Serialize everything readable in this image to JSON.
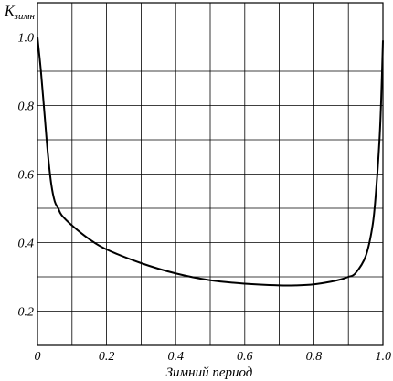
{
  "chart_data": {
    "type": "line",
    "ylabel_main": "K",
    "ylabel_sub": "зимн",
    "xlabel": "Зимний период",
    "xlim": [
      0,
      1.0
    ],
    "ylim": [
      0.1,
      1.1
    ],
    "grid": true,
    "x_ticks": [
      0,
      0.2,
      0.4,
      0.6,
      0.8,
      1.0
    ],
    "x_tick_labels": [
      "0",
      "0.2",
      "0.4",
      "0.6",
      "0.8",
      "1.0"
    ],
    "y_ticks": [
      0.2,
      0.4,
      0.6,
      0.8,
      1.0
    ],
    "y_tick_labels": [
      "0.2",
      "0.4",
      "0.6",
      "0.8",
      "1.0"
    ],
    "x_gridlines": [
      0.1,
      0.2,
      0.3,
      0.4,
      0.5,
      0.6,
      0.7,
      0.8,
      0.9
    ],
    "y_gridlines": [
      0.2,
      0.3,
      0.4,
      0.5,
      0.6,
      0.7,
      0.8,
      0.9,
      1.0
    ],
    "series": [
      {
        "x": [
          0.0,
          0.003,
          0.01,
          0.02,
          0.03,
          0.04,
          0.05,
          0.06,
          0.07,
          0.1,
          0.15,
          0.2,
          0.3,
          0.4,
          0.5,
          0.6,
          0.7,
          0.75,
          0.8,
          0.85,
          0.88,
          0.9,
          0.92,
          0.95,
          0.97,
          0.98,
          0.99,
          0.995,
          1.0
        ],
        "y": [
          1.0,
          0.97,
          0.9,
          0.78,
          0.66,
          0.57,
          0.52,
          0.5,
          0.48,
          0.45,
          0.41,
          0.38,
          0.34,
          0.31,
          0.29,
          0.28,
          0.275,
          0.275,
          0.278,
          0.286,
          0.293,
          0.3,
          0.31,
          0.36,
          0.45,
          0.55,
          0.7,
          0.82,
          0.99
        ]
      }
    ]
  }
}
